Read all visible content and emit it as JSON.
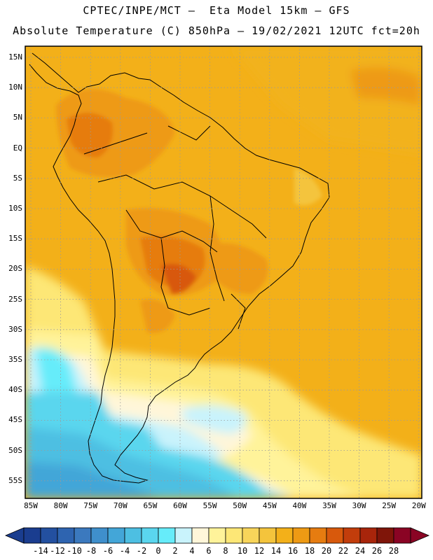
{
  "title_line1": "CPTEC/INPE/MCT –  Eta Model 15km – GFS",
  "title_line2": "Absolute Temperature (C) 850hPa – 19/02/2021 12UTC fct=20h",
  "lat_labels": [
    "15N",
    "10N",
    "5N",
    "EQ",
    "5S",
    "10S",
    "15S",
    "20S",
    "25S",
    "30S",
    "35S",
    "40S",
    "45S",
    "50S",
    "55S"
  ],
  "lon_labels": [
    "85W",
    "80W",
    "75W",
    "70W",
    "65W",
    "60W",
    "55W",
    "50W",
    "45W",
    "40W",
    "35W",
    "30W",
    "25W",
    "20W"
  ],
  "colorbar": {
    "labels": [
      "-14",
      "-12",
      "-10",
      "-8",
      "-6",
      "-4",
      "-2",
      "0",
      "2",
      "4",
      "6",
      "8",
      "10",
      "12",
      "14",
      "16",
      "18",
      "20",
      "22",
      "24",
      "26",
      "28"
    ],
    "colors": [
      "#1a3d8f",
      "#2350a0",
      "#2e64b0",
      "#3b79be",
      "#3f8fcc",
      "#43a6d8",
      "#4dbfe2",
      "#5ad6ee",
      "#66ecfa",
      "#c9f3fc",
      "#fff6d9",
      "#fff39a",
      "#fde776",
      "#f8d55a",
      "#f4c43c",
      "#f3b019",
      "#ee9a14",
      "#e67c10",
      "#d8590c",
      "#c23d0b",
      "#a8250b",
      "#7f1509",
      "#8a0424"
    ]
  },
  "colors": {
    "frame": "#000000",
    "ocean_base": "#f3b019",
    "grid": "#9a9a9a"
  }
}
